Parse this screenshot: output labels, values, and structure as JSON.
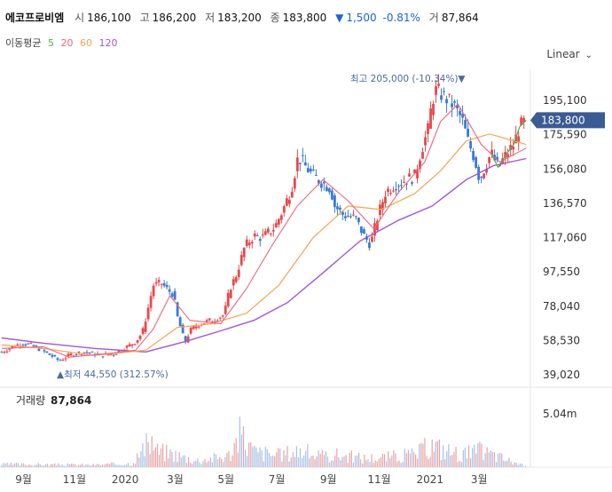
{
  "stock": {
    "name": "에코프로비엠",
    "open_label": "시",
    "open": "186,100",
    "high_label": "고",
    "high": "186,200",
    "low_label": "저",
    "low": "183,200",
    "close_label": "종",
    "close": "183,800",
    "change_arrow": "▼",
    "change": "1,500",
    "change_pct": "-0.81%",
    "volume_label": "거",
    "volume": "87,864"
  },
  "ma_legend": {
    "label": "이동평균",
    "ma5": "5",
    "ma20": "20",
    "ma60": "60",
    "ma120": "120"
  },
  "scale_select": {
    "label": "Linear",
    "icon": "chevron-down-icon"
  },
  "colors": {
    "up": "#e8474b",
    "down": "#3a7bd5",
    "ma5": "#4caf50",
    "ma20": "#f0657a",
    "ma60": "#f5a356",
    "ma120": "#a256d6",
    "price_tag": "#3b5b94",
    "volume": "#c9c9c9"
  },
  "chart_data": {
    "type": "candlestick",
    "y_ticks": [
      "195,100",
      "175,590",
      "156,080",
      "136,570",
      "117,060",
      "97,550",
      "78,040",
      "58,530",
      "39,020"
    ],
    "y_tick_values": [
      195100,
      175590,
      156080,
      136570,
      117060,
      97550,
      78040,
      58530,
      39020
    ],
    "x_ticks": [
      "9월",
      "11월",
      "2020",
      "3월",
      "5월",
      "7월",
      "9월",
      "11월",
      "2021",
      "3월"
    ],
    "current_price_label": "183,800",
    "max_label": "최고 205,000 (-10.34%)▼",
    "min_label": "▲최저 44,550 (312.57%)",
    "close_path": [
      [
        "2019-08-12",
        52000
      ],
      [
        "2019-08-25",
        55000
      ],
      [
        "2019-09-05",
        57000
      ],
      [
        "2019-09-15",
        56000
      ],
      [
        "2019-09-25",
        54000
      ],
      [
        "2019-10-10",
        50000
      ],
      [
        "2019-10-20",
        47000
      ],
      [
        "2019-11-05",
        51000
      ],
      [
        "2019-11-20",
        52000
      ],
      [
        "2019-12-10",
        50000
      ],
      [
        "2019-12-25",
        51000
      ],
      [
        "2020-01-10",
        55000
      ],
      [
        "2020-01-20",
        58000
      ],
      [
        "2020-01-28",
        63000
      ],
      [
        "2020-02-03",
        75000
      ],
      [
        "2020-02-10",
        90000
      ],
      [
        "2020-02-20",
        91000
      ],
      [
        "2020-02-28",
        87000
      ],
      [
        "2020-03-05",
        85000
      ],
      [
        "2020-03-10",
        72000
      ],
      [
        "2020-03-15",
        64000
      ],
      [
        "2020-03-19",
        57000
      ],
      [
        "2020-03-25",
        64000
      ],
      [
        "2020-04-05",
        68000
      ],
      [
        "2020-04-20",
        70000
      ],
      [
        "2020-05-05",
        73000
      ],
      [
        "2020-05-12",
        88000
      ],
      [
        "2020-05-20",
        96000
      ],
      [
        "2020-05-30",
        112000
      ],
      [
        "2020-06-10",
        118000
      ],
      [
        "2020-06-20",
        117000
      ],
      [
        "2020-07-05",
        123000
      ],
      [
        "2020-07-15",
        133000
      ],
      [
        "2020-07-25",
        145000
      ],
      [
        "2020-08-02",
        163000
      ],
      [
        "2020-08-10",
        158000
      ],
      [
        "2020-08-20",
        152000
      ],
      [
        "2020-09-01",
        148000
      ],
      [
        "2020-09-10",
        145000
      ],
      [
        "2020-09-15",
        135000
      ],
      [
        "2020-09-25",
        130000
      ],
      [
        "2020-10-10",
        128000
      ],
      [
        "2020-10-20",
        118000
      ],
      [
        "2020-10-28",
        113000
      ],
      [
        "2020-11-05",
        128000
      ],
      [
        "2020-11-15",
        143000
      ],
      [
        "2020-11-25",
        147000
      ],
      [
        "2020-12-10",
        150000
      ],
      [
        "2020-12-20",
        152000
      ],
      [
        "2020-12-28",
        167000
      ],
      [
        "2021-01-05",
        178000
      ],
      [
        "2021-01-10",
        195000
      ],
      [
        "2021-01-15",
        201000
      ],
      [
        "2021-01-25",
        197000
      ],
      [
        "2021-02-05",
        192000
      ],
      [
        "2021-02-15",
        184000
      ],
      [
        "2021-02-22",
        172000
      ],
      [
        "2021-03-02",
        162000
      ],
      [
        "2021-03-08",
        150000
      ],
      [
        "2021-03-15",
        158000
      ],
      [
        "2021-03-22",
        165000
      ],
      [
        "2021-03-30",
        157000
      ],
      [
        "2021-04-10",
        165000
      ],
      [
        "2021-04-18",
        170000
      ],
      [
        "2021-04-25",
        180000
      ],
      [
        "2021-05-03",
        183800
      ]
    ],
    "ma20_path": [
      [
        "2019-08-12",
        54000
      ],
      [
        "2019-10-01",
        55000
      ],
      [
        "2019-11-01",
        49000
      ],
      [
        "2019-12-15",
        51000
      ],
      [
        "2020-01-20",
        53000
      ],
      [
        "2020-02-10",
        65000
      ],
      [
        "2020-03-01",
        84000
      ],
      [
        "2020-03-25",
        70000
      ],
      [
        "2020-05-01",
        68000
      ],
      [
        "2020-06-01",
        88000
      ],
      [
        "2020-07-01",
        112000
      ],
      [
        "2020-08-01",
        135000
      ],
      [
        "2020-09-01",
        150000
      ],
      [
        "2020-10-01",
        138000
      ],
      [
        "2020-11-01",
        122000
      ],
      [
        "2020-12-01",
        143000
      ],
      [
        "2021-01-01",
        160000
      ],
      [
        "2021-01-20",
        183000
      ],
      [
        "2021-02-10",
        193000
      ],
      [
        "2021-03-10",
        170000
      ],
      [
        "2021-04-01",
        160000
      ],
      [
        "2021-05-03",
        168000
      ]
    ],
    "ma60_path": [
      [
        "2019-08-12",
        56000
      ],
      [
        "2019-10-01",
        54000
      ],
      [
        "2019-12-01",
        50000
      ],
      [
        "2020-02-01",
        53000
      ],
      [
        "2020-03-10",
        66000
      ],
      [
        "2020-04-20",
        68000
      ],
      [
        "2020-06-01",
        74000
      ],
      [
        "2020-07-10",
        90000
      ],
      [
        "2020-08-20",
        117000
      ],
      [
        "2020-10-01",
        135000
      ],
      [
        "2020-11-10",
        133000
      ],
      [
        "2020-12-20",
        142000
      ],
      [
        "2021-01-20",
        155000
      ],
      [
        "2021-02-20",
        172000
      ],
      [
        "2021-03-20",
        176000
      ],
      [
        "2021-05-03",
        170000
      ]
    ],
    "ma120_path": [
      [
        "2019-08-12",
        60000
      ],
      [
        "2019-10-01",
        57000
      ],
      [
        "2019-12-01",
        54000
      ],
      [
        "2020-02-01",
        52000
      ],
      [
        "2020-03-20",
        58000
      ],
      [
        "2020-05-01",
        64000
      ],
      [
        "2020-06-10",
        70000
      ],
      [
        "2020-07-20",
        80000
      ],
      [
        "2020-09-01",
        97000
      ],
      [
        "2020-10-15",
        115000
      ],
      [
        "2020-12-01",
        127000
      ],
      [
        "2021-01-10",
        135000
      ],
      [
        "2021-02-20",
        150000
      ],
      [
        "2021-03-25",
        158000
      ],
      [
        "2021-05-03",
        162000
      ]
    ],
    "volume": {
      "label": "거래량",
      "current": "87,864",
      "y_tick": "5.04m",
      "y_tick_value": 5040000,
      "bars": [
        [
          "2019-09-01",
          380000
        ],
        [
          "2019-10-01",
          350000
        ],
        [
          "2019-11-01",
          320000
        ],
        [
          "2019-12-01",
          300000
        ],
        [
          "2020-01-15",
          500000
        ],
        [
          "2020-02-08",
          3600000
        ],
        [
          "2020-02-15",
          2200000
        ],
        [
          "2020-03-05",
          1800000
        ],
        [
          "2020-04-01",
          900000
        ],
        [
          "2020-05-10",
          1500000
        ],
        [
          "2020-05-25",
          4500000
        ],
        [
          "2020-06-10",
          2100000
        ],
        [
          "2020-07-10",
          1600000
        ],
        [
          "2020-08-02",
          2300000
        ],
        [
          "2020-09-01",
          1400000
        ],
        [
          "2020-09-15",
          1700000
        ],
        [
          "2020-10-20",
          1200000
        ],
        [
          "2020-11-10",
          1300000
        ],
        [
          "2020-12-20",
          1700000
        ],
        [
          "2021-01-10",
          3000000
        ],
        [
          "2021-01-20",
          2500000
        ],
        [
          "2021-02-15",
          1700000
        ],
        [
          "2021-03-10",
          2200000
        ],
        [
          "2021-04-10",
          1000000
        ],
        [
          "2021-05-03",
          87864
        ]
      ]
    }
  }
}
